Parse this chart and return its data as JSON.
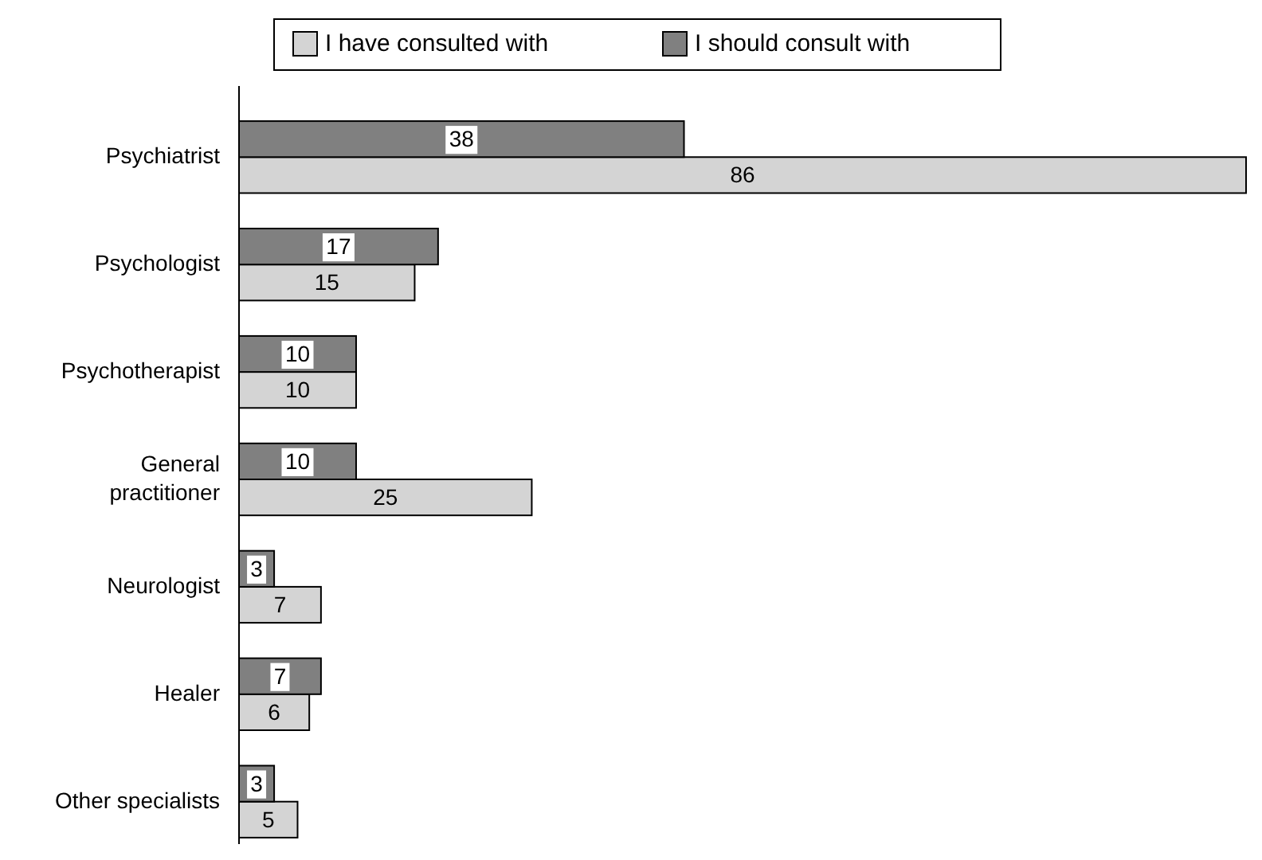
{
  "chart_data": {
    "type": "bar",
    "orientation": "horizontal",
    "categories": [
      "Psychiatrist",
      "Psychologist",
      "Psychotherapist",
      "General practitioner",
      "Neurologist",
      "Healer",
      "Other specialists"
    ],
    "series": [
      {
        "name": "I have consulted with",
        "color": "#d4d4d4",
        "values": [
          86,
          15,
          10,
          25,
          7,
          6,
          5
        ]
      },
      {
        "name": "I should consult with",
        "color": "#808080",
        "values": [
          38,
          17,
          10,
          10,
          3,
          7,
          3
        ]
      }
    ],
    "data_labels": true,
    "legend": "top"
  }
}
